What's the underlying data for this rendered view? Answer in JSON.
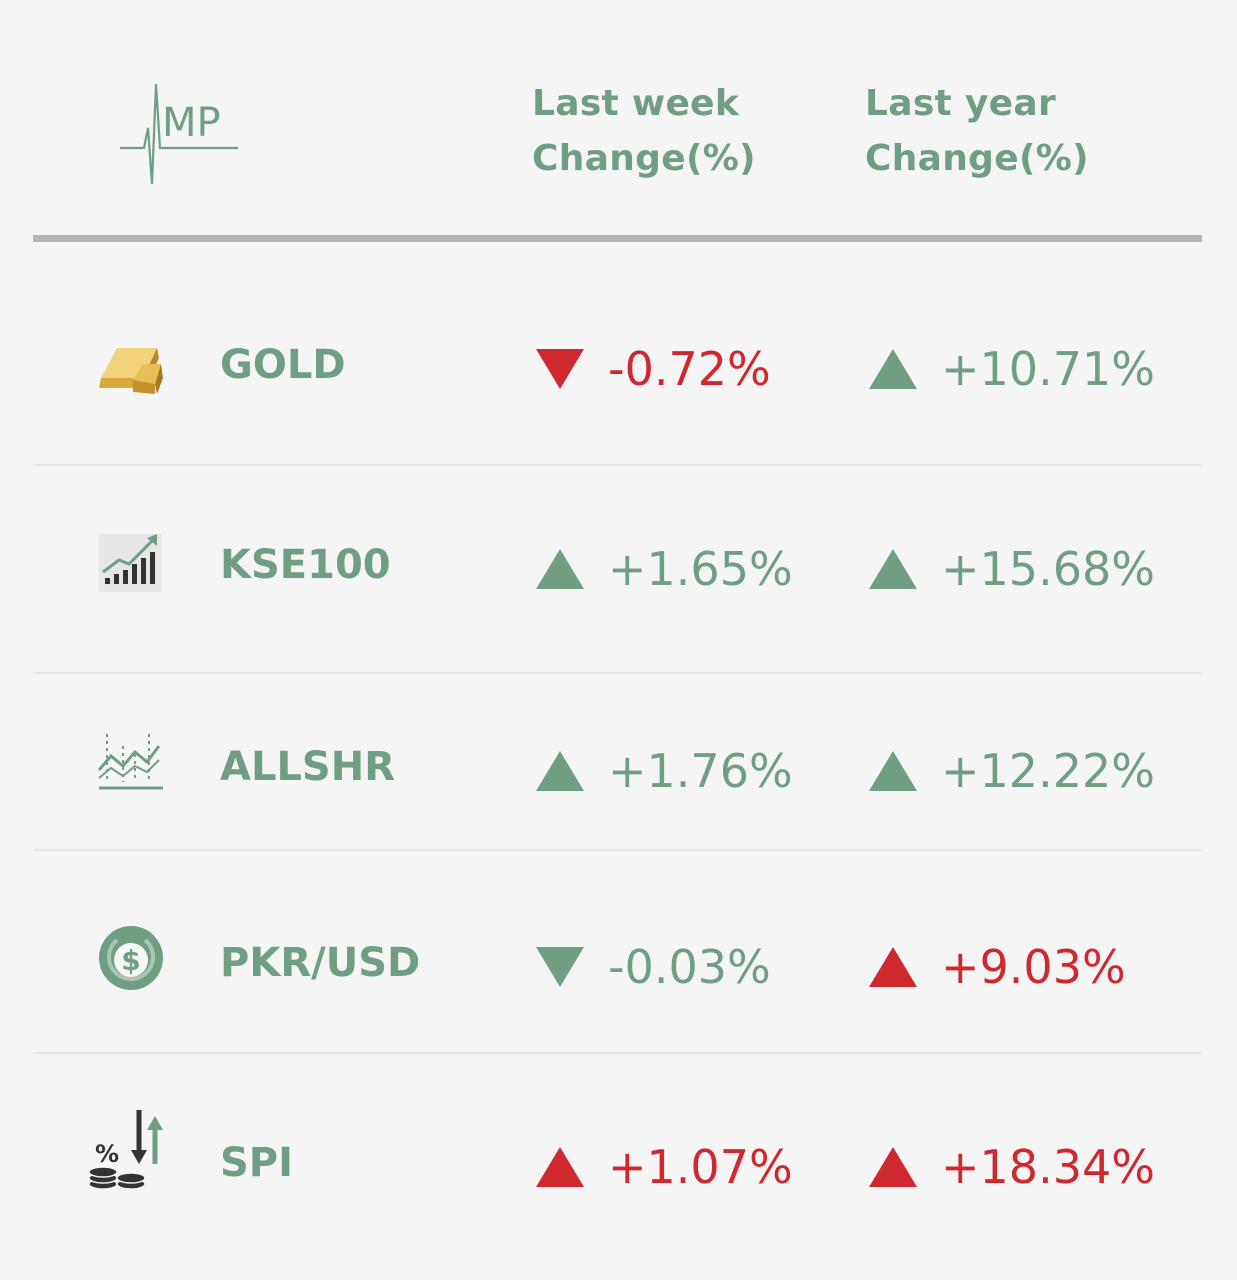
{
  "logo": {
    "text": "MP"
  },
  "headers": {
    "week_line1": "Last week",
    "week_line2": "Change(%)",
    "year_line1": "Last year",
    "year_line2": "Change(%)"
  },
  "colors": {
    "green": "#6f9e83",
    "red": "#d0282f",
    "rule": "#b5b5b5"
  },
  "rows": [
    {
      "name": "GOLD",
      "icon": "gold-bar-icon",
      "week": {
        "value": "-0.72%",
        "direction": "down",
        "color": "red"
      },
      "year": {
        "value": "+10.71%",
        "direction": "up",
        "color": "green"
      }
    },
    {
      "name": "KSE100",
      "icon": "bar-chart-growth-icon",
      "week": {
        "value": "+1.65%",
        "direction": "up",
        "color": "green"
      },
      "year": {
        "value": "+15.68%",
        "direction": "up",
        "color": "green"
      }
    },
    {
      "name": "ALLSHR",
      "icon": "line-chart-icon",
      "week": {
        "value": "+1.76%",
        "direction": "up",
        "color": "green"
      },
      "year": {
        "value": "+12.22%",
        "direction": "up",
        "color": "green"
      }
    },
    {
      "name": "PKR/USD",
      "icon": "dollar-coin-icon",
      "week": {
        "value": "-0.03%",
        "direction": "down",
        "color": "green"
      },
      "year": {
        "value": "+9.03%",
        "direction": "up",
        "color": "red"
      }
    },
    {
      "name": "SPI",
      "icon": "percent-coins-arrows-icon",
      "week": {
        "value": "+1.07%",
        "direction": "up",
        "color": "red"
      },
      "year": {
        "value": "+18.34%",
        "direction": "up",
        "color": "red"
      }
    }
  ]
}
